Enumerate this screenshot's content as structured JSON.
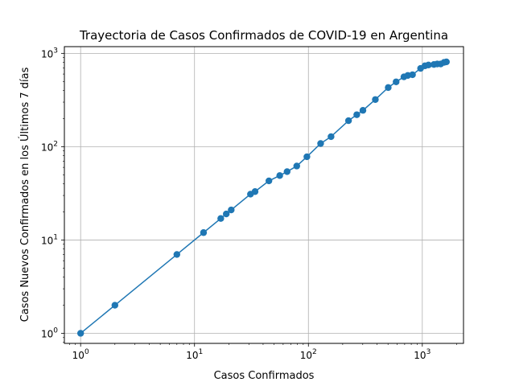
{
  "chart_data": {
    "type": "line",
    "title": "Trayectoria de Casos Confirmados de COVID-19 en Argentina",
    "xlabel": "Casos Confirmados",
    "ylabel": "Casos Nuevos Confirmados en los Últimos 7 días",
    "xscale": "log",
    "yscale": "log",
    "xlim": [
      0.72,
      2300
    ],
    "ylim": [
      0.78,
      1180
    ],
    "grid": true,
    "line_color": "#1f77b4",
    "marker": "circle",
    "x_ticks": [
      {
        "value": 1,
        "base": "10",
        "exp": "0"
      },
      {
        "value": 10,
        "base": "10",
        "exp": "1"
      },
      {
        "value": 100,
        "base": "10",
        "exp": "2"
      },
      {
        "value": 1000,
        "base": "10",
        "exp": "3"
      }
    ],
    "y_ticks": [
      {
        "value": 1,
        "base": "10",
        "exp": "0"
      },
      {
        "value": 10,
        "base": "10",
        "exp": "1"
      },
      {
        "value": 100,
        "base": "10",
        "exp": "2"
      },
      {
        "value": 1000,
        "base": "10",
        "exp": "3"
      }
    ],
    "x": [
      1,
      2,
      7,
      12,
      17,
      19,
      21,
      31,
      34,
      45,
      56,
      65,
      79,
      97,
      128,
      158,
      225,
      266,
      301,
      387,
      502,
      589,
      690,
      745,
      820,
      966,
      1054,
      1133,
      1265,
      1353,
      1451,
      1554,
      1628
    ],
    "y": [
      1,
      2,
      7,
      12,
      17,
      19,
      21,
      31,
      33,
      43,
      49,
      54,
      62,
      78,
      108,
      128,
      190,
      220,
      245,
      320,
      430,
      495,
      560,
      580,
      590,
      690,
      735,
      750,
      760,
      770,
      770,
      800,
      810
    ]
  }
}
